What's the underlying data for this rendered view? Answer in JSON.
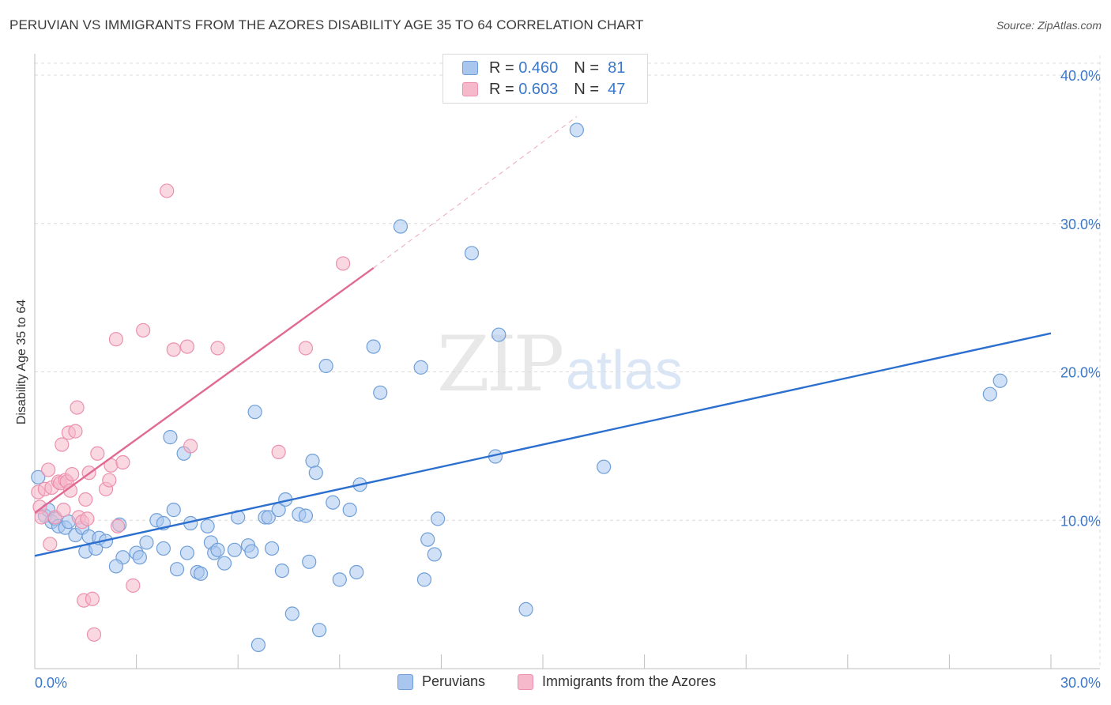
{
  "title": "PERUVIAN VS IMMIGRANTS FROM THE AZORES DISABILITY AGE 35 TO 64 CORRELATION CHART",
  "source": "Source: ZipAtlas.com",
  "watermark": {
    "zip": "ZIP",
    "atlas": "atlas"
  },
  "legend_top": [
    {
      "r_label": "R =",
      "r_value": "0.460",
      "n_label": "N =",
      "n_value": "81"
    },
    {
      "r_label": "R =",
      "r_value": "0.603",
      "n_label": "N =",
      "n_value": "47"
    }
  ],
  "legend_bottom": [
    "Peruvians",
    "Immigrants from the Azores"
  ],
  "colors": {
    "blue_fill": "#a9c7ee",
    "blue_stroke": "#6f9fd8",
    "blue_line": "#2b6fcf",
    "pink_fill": "#f6b8cb",
    "pink_stroke": "#ec90ad",
    "pink_line": "#e06a93",
    "grid": "#dcdcdc",
    "axis_text": "#3b78c9"
  },
  "chart_data": {
    "type": "scatter",
    "title": "PERUVIAN VS IMMIGRANTS FROM THE AZORES DISABILITY AGE 35 TO 64 CORRELATION CHART",
    "xlabel": "",
    "ylabel": "Disability Age 35 to 64",
    "xlim": [
      0,
      30
    ],
    "ylim": [
      0,
      40.8
    ],
    "x_tick_labels": [
      "0.0%",
      "30.0%"
    ],
    "y_ticks": [
      10,
      20,
      30,
      40
    ],
    "y_tick_labels": [
      "10.0%",
      "20.0%",
      "30.0%",
      "40.0%"
    ],
    "series": [
      {
        "name": "Peruvians",
        "r": 0.46,
        "n": 81,
        "trend": {
          "x0": 0,
          "y0": 7.6,
          "x1": 30,
          "y1": 22.6
        },
        "points": [
          [
            0.1,
            12.9
          ],
          [
            0.3,
            10.3
          ],
          [
            0.4,
            10.7
          ],
          [
            0.5,
            9.9
          ],
          [
            0.6,
            10.1
          ],
          [
            0.7,
            9.6
          ],
          [
            0.9,
            9.5
          ],
          [
            1.0,
            9.9
          ],
          [
            1.2,
            9.0
          ],
          [
            1.4,
            9.5
          ],
          [
            1.5,
            7.9
          ],
          [
            1.6,
            8.9
          ],
          [
            1.8,
            8.1
          ],
          [
            1.9,
            8.8
          ],
          [
            2.1,
            8.6
          ],
          [
            2.5,
            9.7
          ],
          [
            2.6,
            7.5
          ],
          [
            2.4,
            6.9
          ],
          [
            3.0,
            7.8
          ],
          [
            3.1,
            7.5
          ],
          [
            3.3,
            8.5
          ],
          [
            3.6,
            10.0
          ],
          [
            3.8,
            9.8
          ],
          [
            3.8,
            8.1
          ],
          [
            4.0,
            15.6
          ],
          [
            4.1,
            10.7
          ],
          [
            4.2,
            6.7
          ],
          [
            4.4,
            14.5
          ],
          [
            4.5,
            7.8
          ],
          [
            4.6,
            9.8
          ],
          [
            4.8,
            6.5
          ],
          [
            4.9,
            6.4
          ],
          [
            5.1,
            9.6
          ],
          [
            5.2,
            8.5
          ],
          [
            5.3,
            7.8
          ],
          [
            5.4,
            8.0
          ],
          [
            5.6,
            7.1
          ],
          [
            5.9,
            8.0
          ],
          [
            6.0,
            10.2
          ],
          [
            6.3,
            8.3
          ],
          [
            6.4,
            7.9
          ],
          [
            6.5,
            17.3
          ],
          [
            6.6,
            1.6
          ],
          [
            6.8,
            10.2
          ],
          [
            6.9,
            10.2
          ],
          [
            7.0,
            8.1
          ],
          [
            7.2,
            10.7
          ],
          [
            7.3,
            6.6
          ],
          [
            7.4,
            11.4
          ],
          [
            7.6,
            3.7
          ],
          [
            7.8,
            10.4
          ],
          [
            8.0,
            10.3
          ],
          [
            8.1,
            7.2
          ],
          [
            8.2,
            14.0
          ],
          [
            8.3,
            13.2
          ],
          [
            8.4,
            2.6
          ],
          [
            8.6,
            20.4
          ],
          [
            8.8,
            11.2
          ],
          [
            9.0,
            6.0
          ],
          [
            9.3,
            10.7
          ],
          [
            9.5,
            6.5
          ],
          [
            9.6,
            12.4
          ],
          [
            10.0,
            21.7
          ],
          [
            10.2,
            18.6
          ],
          [
            10.8,
            29.8
          ],
          [
            11.4,
            20.3
          ],
          [
            11.5,
            6.0
          ],
          [
            11.6,
            8.7
          ],
          [
            11.8,
            7.7
          ],
          [
            11.9,
            10.1
          ],
          [
            12.9,
            28.0
          ],
          [
            13.6,
            14.3
          ],
          [
            13.7,
            22.5
          ],
          [
            14.5,
            4.0
          ],
          [
            16.0,
            36.3
          ],
          [
            16.8,
            13.6
          ],
          [
            28.2,
            18.5
          ],
          [
            28.5,
            19.4
          ]
        ]
      },
      {
        "name": "Immigrants from the Azores",
        "r": 0.603,
        "n": 47,
        "trend": {
          "x0": 0,
          "y0": 10.5,
          "x1": 10.0,
          "y1": 27.0
        },
        "trend_dashed": {
          "x0": 10.0,
          "y0": 27.0,
          "x1": 16.0,
          "y1": 37.2
        },
        "points": [
          [
            0.1,
            11.9
          ],
          [
            0.15,
            10.9
          ],
          [
            0.2,
            10.2
          ],
          [
            0.3,
            12.1
          ],
          [
            0.4,
            13.4
          ],
          [
            0.45,
            8.4
          ],
          [
            0.5,
            12.2
          ],
          [
            0.6,
            10.2
          ],
          [
            0.7,
            12.6
          ],
          [
            0.75,
            12.5
          ],
          [
            0.8,
            15.1
          ],
          [
            0.85,
            10.7
          ],
          [
            0.9,
            12.7
          ],
          [
            0.95,
            12.6
          ],
          [
            1.0,
            15.9
          ],
          [
            1.05,
            12.0
          ],
          [
            1.1,
            13.1
          ],
          [
            1.2,
            16.0
          ],
          [
            1.25,
            17.6
          ],
          [
            1.3,
            10.2
          ],
          [
            1.4,
            9.9
          ],
          [
            1.45,
            4.6
          ],
          [
            1.5,
            11.4
          ],
          [
            1.55,
            10.1
          ],
          [
            1.6,
            13.2
          ],
          [
            1.7,
            4.7
          ],
          [
            1.75,
            2.3
          ],
          [
            1.85,
            14.5
          ],
          [
            2.1,
            12.1
          ],
          [
            2.2,
            12.7
          ],
          [
            2.25,
            13.7
          ],
          [
            2.4,
            22.2
          ],
          [
            2.45,
            9.6
          ],
          [
            2.6,
            13.9
          ],
          [
            2.9,
            5.6
          ],
          [
            3.2,
            22.8
          ],
          [
            3.9,
            32.2
          ],
          [
            4.1,
            21.5
          ],
          [
            4.5,
            21.7
          ],
          [
            4.6,
            15.0
          ],
          [
            5.4,
            21.6
          ],
          [
            7.2,
            14.6
          ],
          [
            8.0,
            21.6
          ],
          [
            9.1,
            27.3
          ]
        ]
      }
    ]
  }
}
